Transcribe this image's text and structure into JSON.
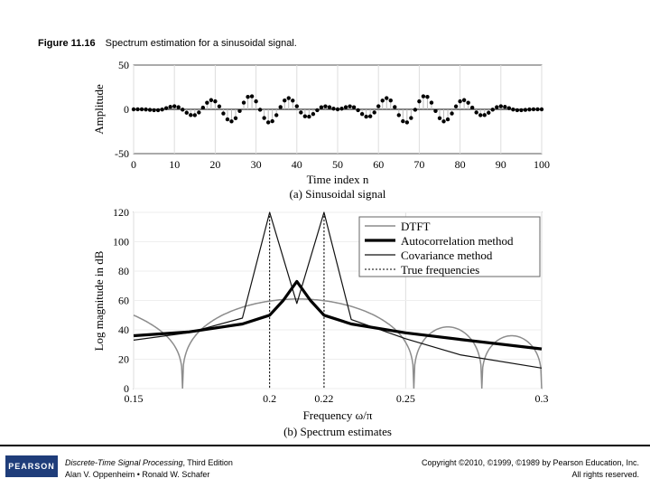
{
  "caption": {
    "figure": "Figure 11.16",
    "title": "Spectrum estimation for a sinusoidal signal."
  },
  "footer": {
    "logo_text": "PEARSON",
    "book_title": "Discrete-Time Signal Processing",
    "edition": ", Third Edition",
    "authors": "Alan V. Oppenheim • Ronald W. Schafer",
    "copyright": "Copyright ©2010, ©1999, ©1989 by Pearson Education, Inc.",
    "rights": "All rights reserved."
  },
  "chart_data": [
    {
      "type": "stem",
      "title": "(a) Sinusoidal signal",
      "xlabel": "Time index n",
      "ylabel": "Amplitude",
      "xlim": [
        0,
        100
      ],
      "ylim": [
        -50,
        50
      ],
      "xticks": [
        0,
        10,
        20,
        30,
        40,
        50,
        60,
        70,
        80,
        90,
        100
      ],
      "yticks": [
        -50,
        0,
        50
      ],
      "signal": {
        "n_min": 0,
        "n_max": 100,
        "frequencies_cycles_per_sample": [
          0.1,
          0.11
        ],
        "amplitude": 20,
        "window": "hann"
      }
    },
    {
      "type": "line",
      "title": "(b) Spectrum estimates",
      "xlabel": "Frequency ω/π",
      "ylabel": "Log magnitude in dB",
      "xlim": [
        0.15,
        0.3
      ],
      "ylim": [
        0,
        120
      ],
      "xticks": [
        0.15,
        0.2,
        0.22,
        0.25,
        0.3
      ],
      "xtick_labels": [
        "0.15",
        "0.2",
        "0.22",
        "0.25",
        "0.3"
      ],
      "yticks": [
        0,
        20,
        40,
        60,
        80,
        100,
        120
      ],
      "legend": {
        "position": "top-right",
        "entries": [
          "DTFT",
          "Autocorrelation method",
          "Covariance method",
          "True frequencies"
        ]
      },
      "true_frequencies": [
        0.2,
        0.22
      ],
      "series": [
        {
          "name": "DTFT",
          "style": "gray",
          "peak": {
            "x": 0.21,
            "y": 61
          },
          "nulls": [
            0.168,
            0.253,
            0.278,
            0.3
          ]
        },
        {
          "name": "Autocorrelation method",
          "style": "thick",
          "x": [
            0.15,
            0.17,
            0.19,
            0.2,
            0.205,
            0.21,
            0.215,
            0.22,
            0.23,
            0.25,
            0.27,
            0.3
          ],
          "y": [
            36,
            38.5,
            44,
            50,
            60,
            73,
            60,
            50,
            44,
            38,
            33.5,
            27
          ]
        },
        {
          "name": "Covariance method",
          "style": "thin",
          "x": [
            0.15,
            0.17,
            0.19,
            0.2,
            0.21,
            0.22,
            0.23,
            0.25,
            0.27,
            0.3
          ],
          "y": [
            33,
            38,
            48,
            120,
            58,
            120,
            47,
            34,
            23,
            14
          ]
        }
      ]
    }
  ]
}
